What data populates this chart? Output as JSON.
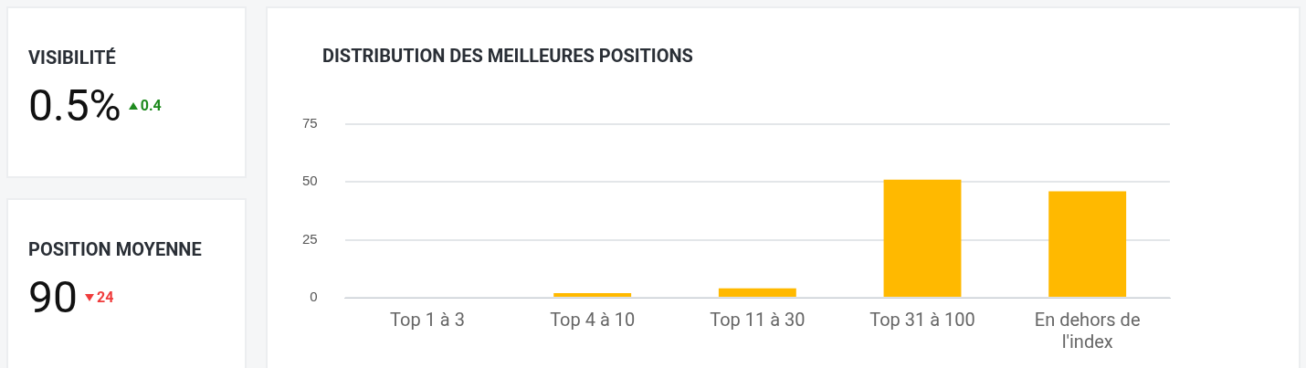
{
  "chart_data": [
    {
      "type": "other",
      "title": "VISIBILITÉ",
      "annotations": [
        "0.5%",
        "0.4"
      ],
      "color": "#1e8a1e"
    },
    {
      "type": "other",
      "title": "POSITION MOYENNE",
      "annotations": [
        "90",
        "24"
      ],
      "color": "#f03c3c"
    },
    {
      "type": "bar",
      "title": "DISTRIBUTION DES MEILLEURES POSITIONS",
      "categories": [
        "Top 1 à 3",
        "Top 4 à 10",
        "Top 11 à 30",
        "Top 31 à 100",
        "En dehors de l'index"
      ],
      "values": [
        0,
        2,
        4,
        51,
        46
      ],
      "color": "#ffb900",
      "ylim": [
        0,
        75
      ],
      "yticks": [
        0,
        25,
        50,
        75
      ],
      "grid": "y",
      "legend": false
    }
  ]
}
